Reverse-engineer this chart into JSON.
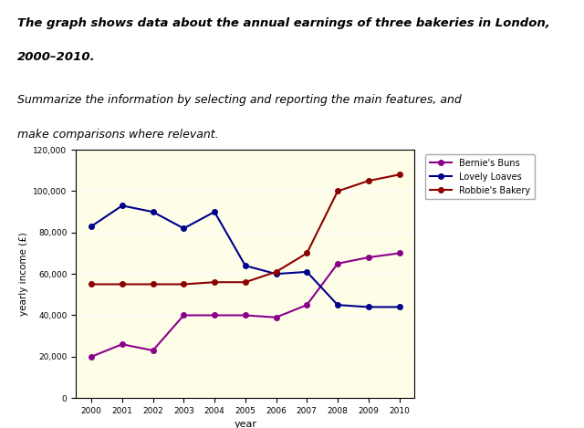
{
  "years": [
    2000,
    2001,
    2002,
    2003,
    2004,
    2005,
    2006,
    2007,
    2008,
    2009,
    2010
  ],
  "bernies_buns": [
    20000,
    26000,
    23000,
    40000,
    40000,
    40000,
    39000,
    45000,
    65000,
    68000,
    70000
  ],
  "lovely_loaves": [
    83000,
    93000,
    90000,
    82000,
    90000,
    64000,
    60000,
    61000,
    45000,
    44000,
    44000
  ],
  "robbies_bakery": [
    55000,
    55000,
    55000,
    55000,
    56000,
    56000,
    61000,
    70000,
    100000,
    105000,
    108000
  ],
  "bernies_color": "#8B008B",
  "lovely_loaves_color": "#00008B",
  "robbies_color": "#8B0000",
  "title_line1": "The graph shows data about the annual earnings of three bakeries in London,",
  "title_line2": "2000–2010.",
  "subtitle_line1": "Summarize the information by selecting and reporting the main features, and",
  "subtitle_line2": "make comparisons where relevant.",
  "xlabel": "year",
  "ylabel": "yearly income (£)",
  "ylim": [
    0,
    120000
  ],
  "yticks": [
    0,
    20000,
    40000,
    60000,
    80000,
    100000,
    120000
  ],
  "legend_labels": [
    "Bernie's Buns",
    "Lovely Loaves",
    "Robbie's Bakery"
  ],
  "bg_color": "#fdfde8"
}
